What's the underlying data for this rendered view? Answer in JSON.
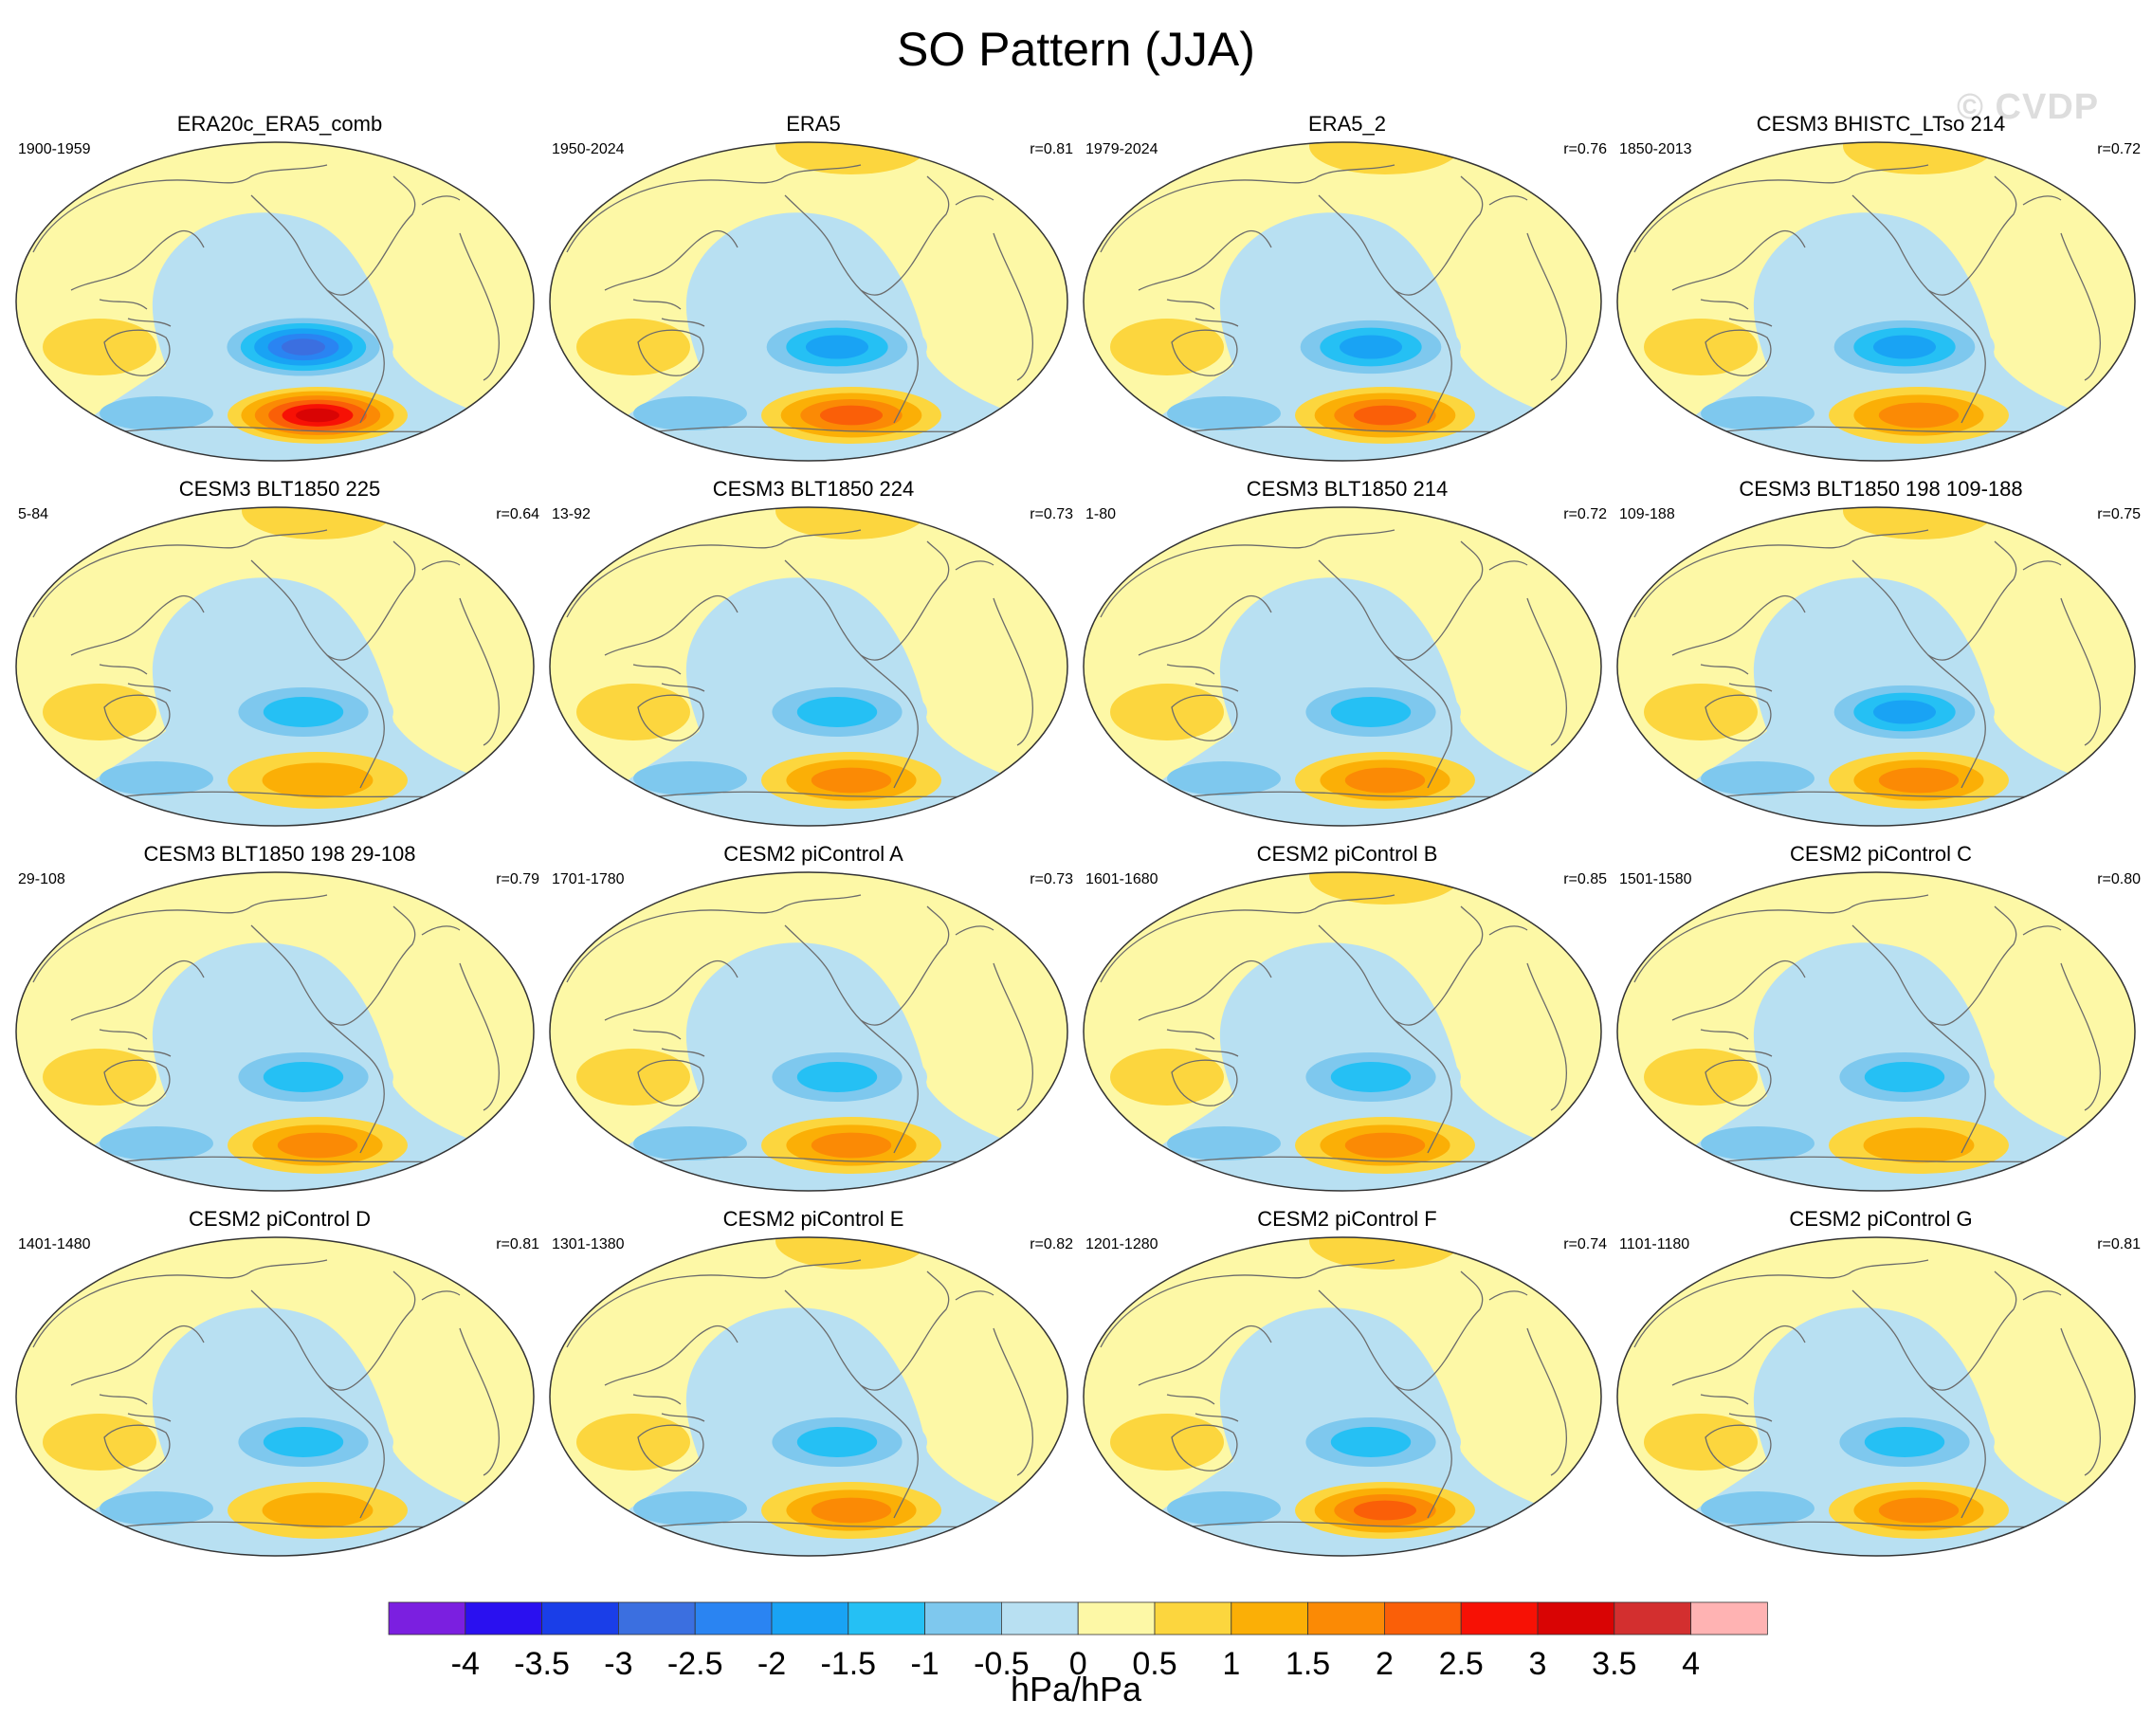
{
  "title": "SO Pattern (JJA)",
  "watermark": "© CVDP",
  "units": "hPa/hPa",
  "colors": {
    "land_outline": "#6b6b6b",
    "levels": [
      "#7b1fe0",
      "#2a10f0",
      "#1a3ee8",
      "#3b6fe0",
      "#2a84f2",
      "#19a3f4",
      "#25c0f4",
      "#7ec8ee",
      "#b8e0f2",
      "#fdf8a6",
      "#fcd63e",
      "#fbaf06",
      "#fb8a05",
      "#fa5f08",
      "#f71105",
      "#d90404",
      "#d32f2f",
      "#ffb3b3"
    ]
  },
  "colorbar": {
    "tick_labels": [
      "-4",
      "-3.5",
      "-3",
      "-2.5",
      "-2",
      "-1.5",
      "-1",
      "-0.5",
      "0",
      "0.5",
      "1",
      "1.5",
      "2",
      "2.5",
      "3",
      "3.5",
      "4"
    ]
  },
  "panels": [
    {
      "title": "ERA20c_ERA5_comb",
      "years": "1900-1959",
      "r": "",
      "ncore": -3.0,
      "score": 3.0,
      "north": 0
    },
    {
      "title": "ERA5",
      "years": "1950-2024",
      "r": "r=0.81",
      "ncore": -2.0,
      "score": 2.0,
      "north": 1
    },
    {
      "title": "ERA5_2",
      "years": "1979-2024",
      "r": "r=0.76",
      "ncore": -2.0,
      "score": 2.0,
      "north": 1
    },
    {
      "title": "CESM3 BHISTC_LTso 214",
      "years": "1850-2013",
      "r": "r=0.72",
      "ncore": -2.0,
      "score": 1.5,
      "north": 1
    },
    {
      "title": "CESM3 BLT1850 225",
      "years": "5-84",
      "r": "r=0.64",
      "ncore": -1.5,
      "score": 1.0,
      "north": 1
    },
    {
      "title": "CESM3 BLT1850 224",
      "years": "13-92",
      "r": "r=0.73",
      "ncore": -1.5,
      "score": 1.5,
      "north": 1
    },
    {
      "title": "CESM3 BLT1850 214",
      "years": "1-80",
      "r": "r=0.72",
      "ncore": -1.5,
      "score": 1.5,
      "north": 0
    },
    {
      "title": "CESM3 BLT1850 198 109-188",
      "years": "109-188",
      "r": "r=0.75",
      "ncore": -2.0,
      "score": 1.5,
      "north": 1
    },
    {
      "title": "CESM3 BLT1850 198 29-108",
      "years": "29-108",
      "r": "r=0.79",
      "ncore": -1.5,
      "score": 1.5,
      "north": 0
    },
    {
      "title": "CESM2 piControl A",
      "years": "1701-1780",
      "r": "r=0.73",
      "ncore": -1.5,
      "score": 1.5,
      "north": 0
    },
    {
      "title": "CESM2 piControl B",
      "years": "1601-1680",
      "r": "r=0.85",
      "ncore": -1.5,
      "score": 1.5,
      "north": 1
    },
    {
      "title": "CESM2 piControl C",
      "years": "1501-1580",
      "r": "r=0.80",
      "ncore": -1.5,
      "score": 1.0,
      "north": 0
    },
    {
      "title": "CESM2 piControl D",
      "years": "1401-1480",
      "r": "r=0.81",
      "ncore": -1.5,
      "score": 1.0,
      "north": 0
    },
    {
      "title": "CESM2 piControl E",
      "years": "1301-1380",
      "r": "r=0.82",
      "ncore": -1.5,
      "score": 1.5,
      "north": 1
    },
    {
      "title": "CESM2 piControl F",
      "years": "1201-1280",
      "r": "r=0.74",
      "ncore": -1.5,
      "score": 2.0,
      "north": 1
    },
    {
      "title": "CESM2 piControl G",
      "years": "1101-1180",
      "r": "r=0.81",
      "ncore": -1.5,
      "score": 1.5,
      "north": 0
    }
  ]
}
